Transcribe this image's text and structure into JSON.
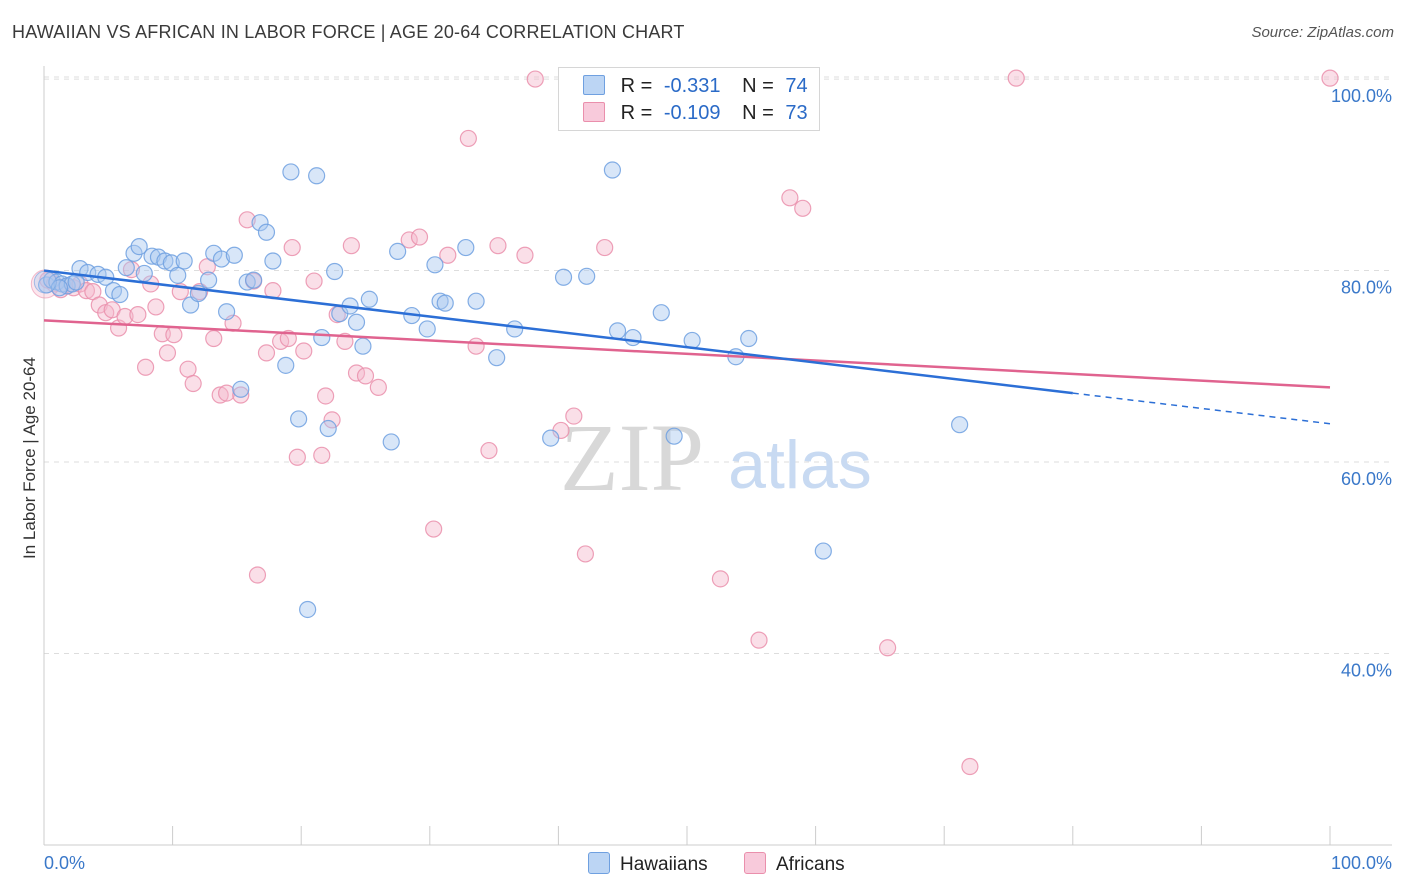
{
  "title": "HAWAIIAN VS AFRICAN IN LABOR FORCE | AGE 20-64 CORRELATION CHART",
  "source": "Source: ZipAtlas.com",
  "watermark": {
    "zip": "ZIP",
    "atlas": "atlas"
  },
  "legend": {
    "rows": [
      {
        "r_label": "R =",
        "r_value": "-0.331",
        "n_label": "N =",
        "n_value": "74"
      },
      {
        "r_label": "R =",
        "r_value": "-0.109",
        "n_label": "N =",
        "n_value": "73"
      }
    ]
  },
  "bottom_legend": {
    "hawaiians": "Hawaiians",
    "africans": "Africans"
  },
  "colors": {
    "blue_fill": "#a8c8f0",
    "blue_stroke": "#6fa0e0",
    "blue_line": "#2c6fd6",
    "pink_fill": "#f5b8cc",
    "pink_stroke": "#ea8fac",
    "pink_line": "#e0638f",
    "axis_text": "#3a78c9",
    "grid": "#dddddd"
  },
  "chart_data": {
    "type": "scatter",
    "title": "HAWAIIAN VS AFRICAN IN LABOR FORCE | AGE 20-64 CORRELATION CHART",
    "xlabel": "",
    "ylabel": "In Labor Force | Age 20-64",
    "xlim": [
      0,
      100
    ],
    "ylim": [
      20,
      101
    ],
    "x_tick_labels": [
      "0.0%",
      "100.0%"
    ],
    "y_ticks": [
      {
        "value": 100,
        "label": "100.0%"
      },
      {
        "value": 80,
        "label": "80.0%"
      },
      {
        "value": 60,
        "label": "60.0%"
      },
      {
        "value": 40,
        "label": "40.0%"
      }
    ],
    "grid": true,
    "legend_position": "top-center",
    "series": [
      {
        "name": "Hawaiians",
        "trend": {
          "x": [
            0,
            80
          ],
          "y": [
            80.0,
            67.2
          ],
          "dashed_to": {
            "x": 100,
            "y": 64.0
          }
        },
        "points": [
          [
            0.2,
            78.5
          ],
          [
            0.6,
            79.0
          ],
          [
            1.0,
            78.8
          ],
          [
            1.4,
            78.6
          ],
          [
            1.8,
            78.4
          ],
          [
            2.2,
            78.6
          ],
          [
            2.8,
            80.2
          ],
          [
            3.4,
            79.8
          ],
          [
            4.2,
            79.6
          ],
          [
            4.8,
            79.3
          ],
          [
            5.4,
            77.9
          ],
          [
            5.9,
            77.5
          ],
          [
            6.4,
            80.3
          ],
          [
            7.0,
            81.8
          ],
          [
            7.4,
            82.5
          ],
          [
            7.8,
            79.7
          ],
          [
            8.4,
            81.5
          ],
          [
            8.9,
            81.4
          ],
          [
            9.4,
            81.0
          ],
          [
            9.9,
            80.8
          ],
          [
            10.4,
            79.5
          ],
          [
            10.9,
            81.0
          ],
          [
            11.4,
            76.4
          ],
          [
            12.0,
            77.6
          ],
          [
            12.8,
            79.0
          ],
          [
            13.2,
            81.8
          ],
          [
            13.8,
            81.2
          ],
          [
            14.2,
            75.7
          ],
          [
            14.8,
            81.6
          ],
          [
            15.3,
            67.6
          ],
          [
            15.8,
            78.8
          ],
          [
            16.3,
            79.0
          ],
          [
            16.8,
            85.0
          ],
          [
            17.3,
            84.0
          ],
          [
            17.8,
            81.0
          ],
          [
            18.8,
            70.1
          ],
          [
            19.2,
            90.3
          ],
          [
            19.8,
            64.5
          ],
          [
            20.5,
            44.6
          ],
          [
            21.2,
            89.9
          ],
          [
            21.6,
            73.0
          ],
          [
            22.1,
            63.5
          ],
          [
            22.6,
            79.9
          ],
          [
            23.0,
            75.5
          ],
          [
            23.8,
            76.3
          ],
          [
            24.3,
            74.6
          ],
          [
            24.8,
            72.1
          ],
          [
            25.3,
            77.0
          ],
          [
            27.0,
            62.1
          ],
          [
            27.5,
            82.0
          ],
          [
            28.6,
            75.3
          ],
          [
            29.8,
            73.9
          ],
          [
            30.4,
            80.6
          ],
          [
            30.8,
            76.8
          ],
          [
            31.2,
            76.6
          ],
          [
            32.8,
            82.4
          ],
          [
            33.6,
            76.8
          ],
          [
            35.2,
            70.9
          ],
          [
            36.6,
            73.9
          ],
          [
            39.4,
            62.5
          ],
          [
            40.4,
            79.3
          ],
          [
            42.2,
            79.4
          ],
          [
            44.2,
            90.5
          ],
          [
            44.6,
            73.7
          ],
          [
            45.8,
            73.0
          ],
          [
            48.0,
            75.6
          ],
          [
            49.0,
            62.7
          ],
          [
            50.4,
            72.7
          ],
          [
            53.8,
            71.0
          ],
          [
            54.8,
            72.9
          ],
          [
            60.6,
            50.7
          ],
          [
            71.2,
            63.9
          ],
          [
            1.2,
            78.2
          ],
          [
            2.5,
            78.8
          ]
        ]
      },
      {
        "name": "Africans",
        "trend": {
          "x": [
            0,
            100
          ],
          "y": [
            74.8,
            67.8
          ]
        },
        "points": [
          [
            0.3,
            79.0
          ],
          [
            0.8,
            78.6
          ],
          [
            1.3,
            78.0
          ],
          [
            1.8,
            78.4
          ],
          [
            2.3,
            78.2
          ],
          [
            2.8,
            78.6
          ],
          [
            3.3,
            77.9
          ],
          [
            3.8,
            77.8
          ],
          [
            4.3,
            76.4
          ],
          [
            4.8,
            75.6
          ],
          [
            5.3,
            75.9
          ],
          [
            5.8,
            74.0
          ],
          [
            6.3,
            75.2
          ],
          [
            6.8,
            80.1
          ],
          [
            7.3,
            75.4
          ],
          [
            7.9,
            69.9
          ],
          [
            8.3,
            78.6
          ],
          [
            8.7,
            76.2
          ],
          [
            9.2,
            73.4
          ],
          [
            9.6,
            71.4
          ],
          [
            10.1,
            73.3
          ],
          [
            10.6,
            77.8
          ],
          [
            11.2,
            69.7
          ],
          [
            11.6,
            68.2
          ],
          [
            12.1,
            77.8
          ],
          [
            12.7,
            80.4
          ],
          [
            13.2,
            72.9
          ],
          [
            13.7,
            67.0
          ],
          [
            14.2,
            67.2
          ],
          [
            14.7,
            74.5
          ],
          [
            15.3,
            67.0
          ],
          [
            15.8,
            85.3
          ],
          [
            16.3,
            78.9
          ],
          [
            16.6,
            48.2
          ],
          [
            17.3,
            71.4
          ],
          [
            17.8,
            77.9
          ],
          [
            18.4,
            72.6
          ],
          [
            19.0,
            72.9
          ],
          [
            19.3,
            82.4
          ],
          [
            19.7,
            60.5
          ],
          [
            20.2,
            71.6
          ],
          [
            21.0,
            78.9
          ],
          [
            21.6,
            60.7
          ],
          [
            21.9,
            66.9
          ],
          [
            22.4,
            64.4
          ],
          [
            22.8,
            75.4
          ],
          [
            23.4,
            72.6
          ],
          [
            23.9,
            82.6
          ],
          [
            24.3,
            69.3
          ],
          [
            25.0,
            69.0
          ],
          [
            26.0,
            67.8
          ],
          [
            28.4,
            83.2
          ],
          [
            29.2,
            83.5
          ],
          [
            30.3,
            53.0
          ],
          [
            31.4,
            81.6
          ],
          [
            33.0,
            93.8
          ],
          [
            33.6,
            72.1
          ],
          [
            34.6,
            61.2
          ],
          [
            35.3,
            82.6
          ],
          [
            37.4,
            81.6
          ],
          [
            38.2,
            100.0
          ],
          [
            40.2,
            63.3
          ],
          [
            41.2,
            64.8
          ],
          [
            42.1,
            50.4
          ],
          [
            43.6,
            82.4
          ],
          [
            52.6,
            47.8
          ],
          [
            55.6,
            41.4
          ],
          [
            58.0,
            87.6
          ],
          [
            59.0,
            86.5
          ],
          [
            65.6,
            40.6
          ],
          [
            72.0,
            28.2
          ],
          [
            75.6,
            100.1
          ],
          [
            100.0,
            100.1
          ]
        ]
      }
    ]
  }
}
